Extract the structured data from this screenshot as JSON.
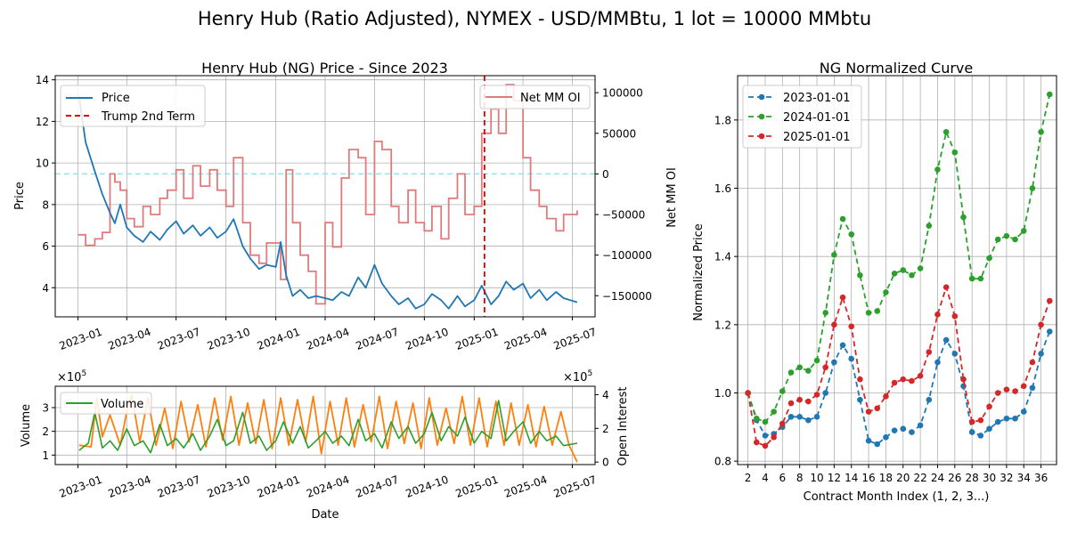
{
  "figure_title": "Henry Hub (Ratio Adjusted), NYMEX - USD/MMBtu, 1 lot = 10000 MMbtu",
  "colors": {
    "price": "#1f77b4",
    "trump": "#d62728",
    "netmm": "#e07b7b",
    "volume": "#2ca02c",
    "oi": "#ff7f0e",
    "zero_line": "#7fe6e6",
    "grid": "#b0b0b0",
    "curve_2023": "#1f77b4",
    "curve_2024": "#2ca02c",
    "curve_2025": "#d62728"
  },
  "chart_data": [
    {
      "id": "price_panel",
      "type": "line",
      "title": "Henry Hub (NG) Price - Since 2023",
      "ylabel_left": "Price",
      "ylabel_right": "Net MM OI",
      "ylim_left": [
        2.6,
        14.2
      ],
      "ylim_right": [
        -176000,
        121000
      ],
      "yticks_left": [
        "4",
        "6",
        "8",
        "10",
        "12",
        "14"
      ],
      "yticks_right": [
        "−150000",
        "−100000",
        "−50000",
        "0",
        "50000",
        "100000"
      ],
      "xticks": [
        "2023-01",
        "2023-04",
        "2023-07",
        "2023-10",
        "2024-01",
        "2024-04",
        "2024-07",
        "2024-10",
        "2025-01",
        "2025-04",
        "2025-07"
      ],
      "grid": true,
      "legend_left": {
        "placement": "upper-left",
        "entries": [
          "Price",
          "Trump 2nd Term"
        ]
      },
      "legend_right": {
        "placement": "upper-right",
        "entries": [
          "Net MM OI"
        ]
      },
      "series": [
        {
          "name": "Price",
          "x": [
            "2023-01-03",
            "2023-01-15",
            "2023-02-01",
            "2023-02-15",
            "2023-03-01",
            "2023-03-10",
            "2023-03-20",
            "2023-04-01",
            "2023-04-15",
            "2023-05-01",
            "2023-05-15",
            "2023-06-01",
            "2023-06-15",
            "2023-07-01",
            "2023-07-15",
            "2023-08-01",
            "2023-08-15",
            "2023-09-01",
            "2023-09-15",
            "2023-10-01",
            "2023-10-15",
            "2023-11-01",
            "2023-11-15",
            "2023-12-01",
            "2023-12-15",
            "2024-01-01",
            "2024-01-10",
            "2024-01-20",
            "2024-02-01",
            "2024-02-15",
            "2024-03-01",
            "2024-03-15",
            "2024-04-01",
            "2024-04-15",
            "2024-05-01",
            "2024-05-15",
            "2024-06-01",
            "2024-06-15",
            "2024-07-01",
            "2024-07-15",
            "2024-08-01",
            "2024-08-15",
            "2024-09-01",
            "2024-09-15",
            "2024-10-01",
            "2024-10-15",
            "2024-11-01",
            "2024-11-15",
            "2024-12-01",
            "2024-12-15",
            "2025-01-01",
            "2025-01-15",
            "2025-02-01",
            "2025-02-15",
            "2025-03-01",
            "2025-03-15",
            "2025-04-01",
            "2025-04-15",
            "2025-05-01",
            "2025-05-15",
            "2025-06-01",
            "2025-06-15",
            "2025-07-10"
          ],
          "values": [
            13.2,
            11.0,
            9.6,
            8.5,
            7.6,
            7.1,
            8.0,
            6.9,
            6.5,
            6.2,
            6.7,
            6.3,
            6.8,
            7.2,
            6.6,
            7.0,
            6.5,
            6.9,
            6.4,
            6.7,
            7.3,
            6.0,
            5.4,
            4.9,
            5.1,
            5.0,
            6.2,
            4.6,
            3.6,
            3.9,
            3.5,
            3.6,
            3.5,
            3.4,
            3.8,
            3.6,
            4.5,
            4.0,
            5.1,
            4.2,
            3.6,
            3.2,
            3.5,
            3.0,
            3.2,
            3.7,
            3.4,
            3.0,
            3.6,
            3.1,
            3.4,
            4.1,
            3.2,
            3.6,
            4.3,
            3.9,
            4.2,
            3.5,
            3.9,
            3.4,
            3.8,
            3.5,
            3.3
          ]
        },
        {
          "name": "Net MM OI",
          "x": [
            "2023-01-01",
            "2023-01-15",
            "2023-02-01",
            "2023-02-15",
            "2023-03-01",
            "2023-03-10",
            "2023-03-20",
            "2023-04-01",
            "2023-04-15",
            "2023-05-01",
            "2023-05-15",
            "2023-06-01",
            "2023-06-15",
            "2023-07-01",
            "2023-07-15",
            "2023-08-01",
            "2023-08-15",
            "2023-09-01",
            "2023-09-15",
            "2023-10-01",
            "2023-10-15",
            "2023-11-01",
            "2023-11-15",
            "2023-12-01",
            "2023-12-15",
            "2024-01-01",
            "2024-01-10",
            "2024-01-20",
            "2024-02-01",
            "2024-02-15",
            "2024-03-01",
            "2024-03-15",
            "2024-04-01",
            "2024-04-15",
            "2024-05-01",
            "2024-05-15",
            "2024-06-01",
            "2024-06-15",
            "2024-07-01",
            "2024-07-15",
            "2024-08-01",
            "2024-08-15",
            "2024-09-01",
            "2024-09-15",
            "2024-10-01",
            "2024-10-15",
            "2024-11-01",
            "2024-11-15",
            "2024-12-01",
            "2024-12-15",
            "2025-01-01",
            "2025-01-15",
            "2025-02-01",
            "2025-02-15",
            "2025-03-01",
            "2025-03-15",
            "2025-04-01",
            "2025-04-15",
            "2025-05-01",
            "2025-05-15",
            "2025-06-01",
            "2025-06-15",
            "2025-07-10"
          ],
          "values": [
            -75000,
            -88000,
            -80000,
            -72000,
            0,
            -10000,
            -20000,
            -55000,
            -65000,
            -40000,
            -50000,
            -30000,
            -20000,
            5000,
            -30000,
            10000,
            -15000,
            5000,
            -20000,
            -40000,
            20000,
            -60000,
            -100000,
            -110000,
            -85000,
            -85000,
            -130000,
            5000,
            -60000,
            -100000,
            -120000,
            -160000,
            -60000,
            -90000,
            -5000,
            30000,
            20000,
            -50000,
            40000,
            30000,
            -40000,
            -60000,
            -20000,
            -60000,
            -70000,
            -40000,
            -80000,
            -30000,
            0,
            -50000,
            -40000,
            50000,
            80000,
            50000,
            110000,
            90000,
            20000,
            -20000,
            -40000,
            -55000,
            -70000,
            -50000,
            -45000
          ]
        }
      ],
      "vline": {
        "name": "Trump 2nd Term",
        "x": "2025-01-20"
      },
      "hline_right": {
        "y": 0
      }
    },
    {
      "id": "volume_panel",
      "type": "line",
      "xlabel": "Date",
      "ylabel_left": "Volume",
      "ylabel_right": "Open Interest",
      "scale_left": "×10^5",
      "scale_right": "×10^5",
      "ylim_left": [
        0.6,
        3.9
      ],
      "ylim_right": [
        -0.15,
        4.5
      ],
      "yticks_left": [
        "1",
        "2",
        "3"
      ],
      "yticks_right": [
        "0",
        "2",
        "4"
      ],
      "xticks": [
        "2023-01",
        "2023-04",
        "2023-07",
        "2023-10",
        "2024-01",
        "2024-04",
        "2024-07",
        "2024-10",
        "2025-01",
        "2025-04",
        "2025-07"
      ],
      "grid": true,
      "legend_left": {
        "placement": "upper-left",
        "entries": [
          "Volume"
        ]
      },
      "series": [
        {
          "name": "Volume",
          "x": [
            "2023-01-03",
            "2023-01-20",
            "2023-02-01",
            "2023-02-15",
            "2023-03-01",
            "2023-03-15",
            "2023-04-01",
            "2023-04-15",
            "2023-05-01",
            "2023-05-15",
            "2023-06-01",
            "2023-06-15",
            "2023-07-01",
            "2023-07-15",
            "2023-08-01",
            "2023-08-15",
            "2023-09-01",
            "2023-09-15",
            "2023-10-01",
            "2023-10-15",
            "2023-11-01",
            "2023-11-15",
            "2023-12-01",
            "2023-12-15",
            "2024-01-01",
            "2024-01-15",
            "2024-02-01",
            "2024-02-15",
            "2024-03-01",
            "2024-03-15",
            "2024-04-01",
            "2024-04-15",
            "2024-05-01",
            "2024-05-15",
            "2024-06-01",
            "2024-06-15",
            "2024-07-01",
            "2024-07-15",
            "2024-08-01",
            "2024-08-15",
            "2024-09-01",
            "2024-09-15",
            "2024-10-01",
            "2024-10-15",
            "2024-11-01",
            "2024-11-15",
            "2024-12-01",
            "2024-12-15",
            "2025-01-01",
            "2025-01-15",
            "2025-02-01",
            "2025-02-15",
            "2025-03-01",
            "2025-03-15",
            "2025-04-01",
            "2025-04-15",
            "2025-05-01",
            "2025-05-15",
            "2025-06-01",
            "2025-06-15",
            "2025-07-10"
          ],
          "values": [
            1.2,
            1.5,
            2.8,
            1.3,
            1.6,
            1.2,
            2.1,
            1.4,
            1.6,
            1.1,
            2.3,
            1.4,
            1.7,
            1.3,
            1.9,
            1.2,
            1.8,
            2.5,
            1.4,
            1.6,
            2.8,
            1.5,
            1.8,
            1.2,
            1.6,
            2.4,
            1.5,
            2.2,
            1.3,
            1.6,
            2.0,
            1.5,
            1.8,
            1.4,
            2.5,
            1.6,
            1.9,
            1.3,
            2.4,
            1.7,
            2.2,
            1.5,
            1.9,
            2.8,
            1.6,
            2.2,
            1.8,
            2.6,
            1.5,
            2.0,
            1.7,
            3.3,
            1.6,
            2.0,
            2.4,
            1.5,
            2.0,
            1.6,
            1.8,
            1.4,
            1.5
          ]
        },
        {
          "name": "Open Interest",
          "x": [
            "2023-01-03",
            "2023-01-25",
            "2023-02-05",
            "2023-02-15",
            "2023-03-01",
            "2023-03-20",
            "2023-04-01",
            "2023-04-10",
            "2023-04-25",
            "2023-05-10",
            "2023-05-25",
            "2023-06-10",
            "2023-06-25",
            "2023-07-10",
            "2023-07-25",
            "2023-08-10",
            "2023-08-25",
            "2023-09-10",
            "2023-09-25",
            "2023-10-10",
            "2023-10-25",
            "2023-11-10",
            "2023-11-25",
            "2023-12-10",
            "2023-12-25",
            "2024-01-10",
            "2024-01-25",
            "2024-02-10",
            "2024-02-25",
            "2024-03-10",
            "2024-03-25",
            "2024-04-10",
            "2024-04-25",
            "2024-05-10",
            "2024-05-25",
            "2024-06-10",
            "2024-06-25",
            "2024-07-10",
            "2024-07-25",
            "2024-08-10",
            "2024-08-25",
            "2024-09-10",
            "2024-09-25",
            "2024-10-10",
            "2024-10-25",
            "2024-11-10",
            "2024-11-25",
            "2024-12-10",
            "2024-12-25",
            "2025-01-10",
            "2025-01-25",
            "2025-02-10",
            "2025-02-25",
            "2025-03-10",
            "2025-03-25",
            "2025-04-10",
            "2025-04-25",
            "2025-05-10",
            "2025-05-25",
            "2025-06-10",
            "2025-06-25",
            "2025-07-10"
          ],
          "values": [
            1.0,
            0.9,
            3.8,
            1.5,
            2.8,
            1.0,
            3.0,
            4.0,
            1.2,
            3.8,
            1.0,
            3.2,
            0.8,
            3.6,
            1.2,
            3.4,
            0.9,
            3.8,
            1.3,
            3.9,
            1.0,
            3.5,
            1.1,
            3.7,
            0.8,
            3.8,
            1.0,
            3.7,
            1.2,
            3.9,
            0.5,
            3.6,
            1.0,
            3.8,
            0.9,
            3.4,
            1.2,
            3.9,
            0.8,
            3.6,
            1.1,
            3.5,
            0.8,
            3.8,
            1.0,
            3.2,
            1.1,
            3.9,
            1.0,
            3.8,
            0.9,
            3.6,
            1.0,
            3.5,
            1.0,
            3.4,
            0.9,
            3.3,
            1.0,
            3.0,
            1.0,
            0.0
          ]
        }
      ]
    },
    {
      "id": "curve_panel",
      "type": "line",
      "title": "NG Normalized Curve",
      "xlabel": "Contract Month Index (1, 2, 3...)",
      "ylabel": "Normalized Price",
      "ylim": [
        0.79,
        1.93
      ],
      "xlim": [
        0.8,
        37.8
      ],
      "yticks": [
        "0.8",
        "1.0",
        "1.2",
        "1.4",
        "1.6",
        "1.8"
      ],
      "xticks": [
        "2",
        "4",
        "6",
        "8",
        "10",
        "12",
        "14",
        "16",
        "18",
        "20",
        "22",
        "24",
        "26",
        "28",
        "30",
        "32",
        "34",
        "36"
      ],
      "grid": true,
      "legend": {
        "placement": "upper-left",
        "entries": [
          "2023-01-01",
          "2024-01-01",
          "2025-01-01"
        ]
      },
      "x": [
        2,
        3,
        4,
        5,
        6,
        7,
        8,
        9,
        10,
        11,
        12,
        13,
        14,
        15,
        16,
        17,
        18,
        19,
        20,
        21,
        22,
        23,
        24,
        25,
        26,
        27,
        28,
        29,
        30,
        31,
        32,
        33,
        34,
        35,
        36,
        37
      ],
      "series": [
        {
          "name": "2023-01-01",
          "values": [
            1.0,
            0.92,
            0.875,
            0.88,
            0.9,
            0.93,
            0.93,
            0.92,
            0.93,
            1.0,
            1.09,
            1.14,
            1.1,
            0.98,
            0.86,
            0.85,
            0.87,
            0.89,
            0.895,
            0.885,
            0.905,
            0.98,
            1.09,
            1.155,
            1.115,
            1.02,
            0.885,
            0.875,
            0.895,
            0.915,
            0.925,
            0.925,
            0.945,
            1.015,
            1.115,
            1.18
          ]
        },
        {
          "name": "2024-01-01",
          "values": [
            1.0,
            0.925,
            0.915,
            0.945,
            1.005,
            1.06,
            1.075,
            1.065,
            1.095,
            1.235,
            1.405,
            1.51,
            1.465,
            1.345,
            1.235,
            1.24,
            1.295,
            1.35,
            1.36,
            1.345,
            1.365,
            1.49,
            1.655,
            1.765,
            1.705,
            1.515,
            1.335,
            1.335,
            1.395,
            1.45,
            1.46,
            1.45,
            1.475,
            1.6,
            1.765,
            1.875
          ]
        },
        {
          "name": "2025-01-01",
          "values": [
            1.0,
            0.855,
            0.845,
            0.87,
            0.91,
            0.97,
            0.98,
            0.975,
            0.995,
            1.075,
            1.2,
            1.28,
            1.195,
            1.04,
            0.945,
            0.955,
            0.99,
            1.03,
            1.04,
            1.035,
            1.05,
            1.12,
            1.23,
            1.31,
            1.225,
            1.04,
            0.915,
            0.92,
            0.96,
            1.0,
            1.01,
            1.005,
            1.02,
            1.09,
            1.2,
            1.27
          ]
        }
      ]
    }
  ]
}
